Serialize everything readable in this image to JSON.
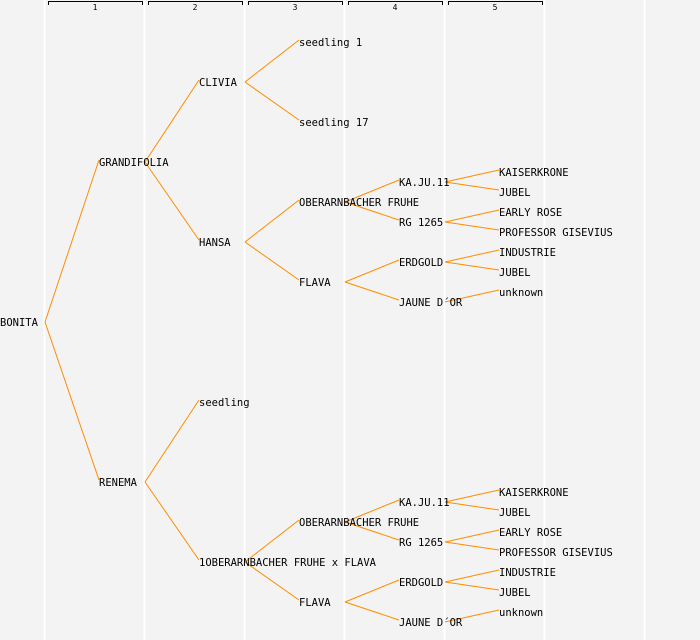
{
  "columns": [
    "1",
    "2",
    "3",
    "4",
    "5"
  ],
  "colors": {
    "line": "#ff8c00",
    "background": "#f3f3f3",
    "separator": "#ffffff"
  },
  "tree": {
    "label": "BONITA",
    "parents": [
      {
        "label": "GRANDIFOLIA",
        "parents": [
          {
            "label": "CLIVIA",
            "parents": [
              {
                "label": "seedling 1"
              },
              {
                "label": "seedling 17"
              }
            ]
          },
          {
            "label": "HANSA",
            "parents": [
              {
                "label": "OBERARNBACHER FRUHE",
                "parents": [
                  {
                    "label": "KA.JU.11",
                    "parents": [
                      {
                        "label": "KAISERKRONE"
                      },
                      {
                        "label": "JUBEL"
                      }
                    ]
                  },
                  {
                    "label": "RG 1265",
                    "parents": [
                      {
                        "label": "EARLY ROSE"
                      },
                      {
                        "label": "PROFESSOR GISEVIUS"
                      }
                    ]
                  }
                ]
              },
              {
                "label": "FLAVA",
                "parents": [
                  {
                    "label": "ERDGOLD",
                    "parents": [
                      {
                        "label": "INDUSTRIE"
                      },
                      {
                        "label": "JUBEL"
                      }
                    ]
                  },
                  {
                    "label": "JAUNE D´OR",
                    "parents": [
                      {
                        "label": "unknown"
                      }
                    ]
                  }
                ]
              }
            ]
          }
        ]
      },
      {
        "label": "RENEMA",
        "parents": [
          {
            "label": "seedling"
          },
          {
            "label": "1OBERARNBACHER FRUHE x FLAVA",
            "parents": [
              {
                "label": "OBERARNBACHER FRUHE",
                "parents": [
                  {
                    "label": "KA.JU.11",
                    "parents": [
                      {
                        "label": "KAISERKRONE"
                      },
                      {
                        "label": "JUBEL"
                      }
                    ]
                  },
                  {
                    "label": "RG 1265",
                    "parents": [
                      {
                        "label": "EARLY ROSE"
                      },
                      {
                        "label": "PROFESSOR GISEVIUS"
                      }
                    ]
                  }
                ]
              },
              {
                "label": "FLAVA",
                "parents": [
                  {
                    "label": "ERDGOLD",
                    "parents": [
                      {
                        "label": "INDUSTRIE"
                      },
                      {
                        "label": "JUBEL"
                      }
                    ]
                  },
                  {
                    "label": "JAUNE D´OR",
                    "parents": [
                      {
                        "label": "unknown"
                      }
                    ]
                  }
                ]
              }
            ]
          }
        ]
      }
    ]
  }
}
